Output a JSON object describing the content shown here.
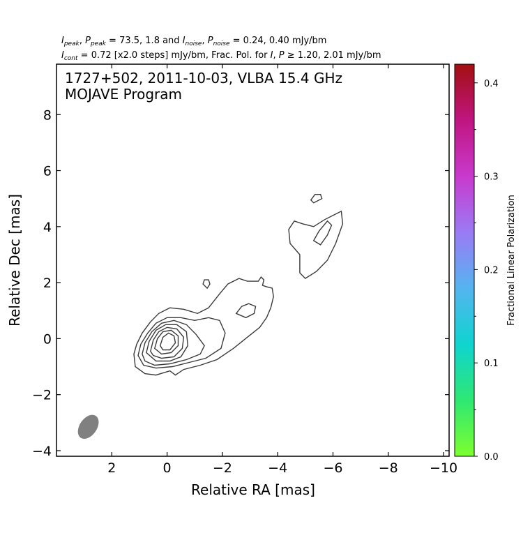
{
  "header": {
    "line1": {
      "i_sym": "I",
      "i_sub": "peak",
      "sep1": ", ",
      "p_sym": "P",
      "p_sub": "peak",
      "values": " = 73.5, 1.8 and ",
      "in_sym": "I",
      "in_sub": "noise",
      "sep2": ", ",
      "pn_sym": "P",
      "pn_sub": "noise",
      "values2": " = 0.24, 0.40 mJy/bm"
    },
    "line2": {
      "ic_sym": "I",
      "ic_sub": "cont",
      "mid": " = 0.72 [x2.0 steps] mJy/bm, Frac. Pol. for ",
      "i_sym": "I",
      "sep": ", ",
      "p_sym": "P",
      "tail": " ≥ 1.20, 2.01 mJy/bm"
    }
  },
  "annotation": {
    "line1": "1727+502, 2011-10-03, VLBA 15.4 GHz",
    "line2": "MOJAVE Program"
  },
  "chart_data": {
    "type": "contour",
    "title": "1727+502, 2011-10-03, VLBA 15.4 GHz",
    "subtitle": "MOJAVE Program",
    "xlabel": "Relative RA [mas]",
    "ylabel": "Relative Dec [mas]",
    "xlim": [
      4.0,
      -10.2
    ],
    "ylim": [
      -4.2,
      9.8
    ],
    "x_ticks": [
      2,
      0,
      -2,
      -4,
      -6,
      -8,
      -10
    ],
    "x_tick_labels": [
      "2",
      "0",
      "−2",
      "−4",
      "−6",
      "−8",
      "−10"
    ],
    "y_ticks": [
      -4,
      -2,
      0,
      2,
      4,
      6,
      8
    ],
    "y_tick_labels": [
      "−4",
      "−2",
      "0",
      "2",
      "4",
      "6",
      "8"
    ],
    "peak_intensity_mJy_bm": 73.5,
    "peak_polarization_mJy_bm": 1.8,
    "noise_intensity_mJy_bm": 0.24,
    "noise_polarization_mJy_bm": 0.4,
    "lowest_contour_mJy_bm": 0.72,
    "contour_step_factor": 2.0,
    "frac_pol_cutoffs_mJy_bm": [
      1.2,
      2.01
    ],
    "beam": {
      "center": [
        2.85,
        -3.15
      ],
      "major_mas": 0.95,
      "minor_mas": 0.62,
      "color": "#808080"
    },
    "contours": [
      [
        [
          1.2,
          -0.55
        ],
        [
          1.1,
          -0.2
        ],
        [
          0.9,
          0.2
        ],
        [
          0.6,
          0.6
        ],
        [
          0.3,
          0.9
        ],
        [
          -0.1,
          1.1
        ],
        [
          -0.6,
          1.05
        ],
        [
          -1.1,
          0.9
        ],
        [
          -1.5,
          1.1
        ],
        [
          -1.9,
          1.6
        ],
        [
          -2.2,
          1.95
        ],
        [
          -2.6,
          2.15
        ],
        [
          -2.9,
          2.05
        ],
        [
          -3.1,
          2.05
        ],
        [
          -3.3,
          2.05
        ],
        [
          -3.4,
          2.2
        ],
        [
          -3.5,
          2.1
        ],
        [
          -3.45,
          1.9
        ],
        [
          -3.6,
          1.85
        ],
        [
          -3.8,
          1.8
        ],
        [
          -3.85,
          1.5
        ],
        [
          -3.75,
          1.1
        ],
        [
          -3.6,
          0.75
        ],
        [
          -3.35,
          0.4
        ],
        [
          -2.9,
          0.05
        ],
        [
          -2.4,
          -0.35
        ],
        [
          -1.8,
          -0.75
        ],
        [
          -1.2,
          -0.95
        ],
        [
          -0.6,
          -1.1
        ],
        [
          -0.3,
          -1.3
        ],
        [
          -0.1,
          -1.15
        ],
        [
          0.4,
          -1.3
        ],
        [
          0.8,
          -1.25
        ],
        [
          1.15,
          -1.0
        ],
        [
          1.2,
          -0.55
        ]
      ],
      [
        [
          1.05,
          -0.6
        ],
        [
          0.95,
          -0.2
        ],
        [
          0.7,
          0.2
        ],
        [
          0.4,
          0.55
        ],
        [
          0.0,
          0.75
        ],
        [
          -0.5,
          0.75
        ],
        [
          -1.0,
          0.65
        ],
        [
          -1.5,
          0.75
        ],
        [
          -1.9,
          0.65
        ],
        [
          -2.1,
          0.2
        ],
        [
          -1.95,
          -0.35
        ],
        [
          -1.4,
          -0.7
        ],
        [
          -0.8,
          -0.85
        ],
        [
          -0.2,
          -1.0
        ],
        [
          0.4,
          -1.05
        ],
        [
          0.85,
          -0.95
        ],
        [
          1.05,
          -0.6
        ]
      ],
      [
        [
          0.9,
          -0.55
        ],
        [
          0.8,
          -0.15
        ],
        [
          0.55,
          0.25
        ],
        [
          0.2,
          0.55
        ],
        [
          -0.25,
          0.65
        ],
        [
          -0.7,
          0.5
        ],
        [
          -1.05,
          0.15
        ],
        [
          -1.35,
          -0.25
        ],
        [
          -1.2,
          -0.55
        ],
        [
          -0.7,
          -0.75
        ],
        [
          -0.1,
          -0.9
        ],
        [
          0.45,
          -0.95
        ],
        [
          0.8,
          -0.8
        ],
        [
          0.9,
          -0.55
        ]
      ],
      [
        [
          0.75,
          -0.5
        ],
        [
          0.65,
          -0.1
        ],
        [
          0.4,
          0.3
        ],
        [
          0.05,
          0.5
        ],
        [
          -0.35,
          0.5
        ],
        [
          -0.7,
          0.25
        ],
        [
          -0.75,
          -0.25
        ],
        [
          -0.5,
          -0.65
        ],
        [
          -0.1,
          -0.8
        ],
        [
          0.4,
          -0.8
        ],
        [
          0.75,
          -0.5
        ]
      ],
      [
        [
          0.6,
          -0.45
        ],
        [
          0.5,
          -0.05
        ],
        [
          0.3,
          0.25
        ],
        [
          0.0,
          0.4
        ],
        [
          -0.35,
          0.35
        ],
        [
          -0.6,
          0.05
        ],
        [
          -0.55,
          -0.35
        ],
        [
          -0.25,
          -0.65
        ],
        [
          0.2,
          -0.7
        ],
        [
          0.5,
          -0.6
        ],
        [
          0.6,
          -0.45
        ]
      ],
      [
        [
          0.45,
          -0.35
        ],
        [
          0.35,
          0.0
        ],
        [
          0.15,
          0.25
        ],
        [
          -0.15,
          0.3
        ],
        [
          -0.4,
          0.1
        ],
        [
          -0.4,
          -0.25
        ],
        [
          -0.15,
          -0.5
        ],
        [
          0.2,
          -0.55
        ],
        [
          0.45,
          -0.35
        ]
      ],
      [
        [
          0.25,
          -0.25
        ],
        [
          0.15,
          0.05
        ],
        [
          -0.05,
          0.2
        ],
        [
          -0.25,
          0.1
        ],
        [
          -0.3,
          -0.15
        ],
        [
          -0.1,
          -0.4
        ],
        [
          0.15,
          -0.4
        ],
        [
          0.25,
          -0.25
        ]
      ],
      [
        [
          -2.5,
          0.9
        ],
        [
          -2.7,
          1.15
        ],
        [
          -2.95,
          1.25
        ],
        [
          -3.2,
          1.15
        ],
        [
          -3.15,
          0.9
        ],
        [
          -2.85,
          0.75
        ],
        [
          -2.5,
          0.9
        ]
      ],
      [
        [
          -1.3,
          1.95
        ],
        [
          -1.35,
          2.1
        ],
        [
          -1.5,
          2.1
        ],
        [
          -1.55,
          1.95
        ],
        [
          -1.45,
          1.8
        ],
        [
          -1.3,
          1.95
        ]
      ],
      [
        [
          -4.8,
          3.0
        ],
        [
          -4.45,
          3.4
        ],
        [
          -4.4,
          3.9
        ],
        [
          -4.6,
          4.2
        ],
        [
          -4.9,
          4.1
        ],
        [
          -5.3,
          4.0
        ],
        [
          -5.7,
          4.25
        ],
        [
          -6.0,
          4.4
        ],
        [
          -6.3,
          4.55
        ],
        [
          -6.35,
          4.1
        ],
        [
          -6.1,
          3.4
        ],
        [
          -5.8,
          2.8
        ],
        [
          -5.4,
          2.4
        ],
        [
          -5.0,
          2.15
        ],
        [
          -4.8,
          2.35
        ],
        [
          -4.8,
          3.0
        ]
      ],
      [
        [
          -5.55,
          3.35
        ],
        [
          -5.8,
          3.7
        ],
        [
          -5.95,
          4.05
        ],
        [
          -5.8,
          4.2
        ],
        [
          -5.5,
          3.85
        ],
        [
          -5.3,
          3.5
        ],
        [
          -5.55,
          3.35
        ]
      ],
      [
        [
          -5.3,
          4.85
        ],
        [
          -5.6,
          5.0
        ],
        [
          -5.55,
          5.15
        ],
        [
          -5.35,
          5.15
        ],
        [
          -5.2,
          4.95
        ],
        [
          -5.3,
          4.85
        ]
      ]
    ],
    "colorbar": {
      "label": "Fractional Linear Polarization",
      "range": [
        0.0,
        0.42
      ],
      "ticks": [
        0.0,
        0.1,
        0.2,
        0.3,
        0.4
      ],
      "tick_labels": [
        "0.0",
        "0.1",
        "0.2",
        "0.3",
        "0.4"
      ],
      "colors": [
        "#7dff2e",
        "#2ee873",
        "#0fd4d0",
        "#55b4f0",
        "#9a7bf5",
        "#c83acd",
        "#c01580",
        "#a20f10"
      ]
    }
  }
}
